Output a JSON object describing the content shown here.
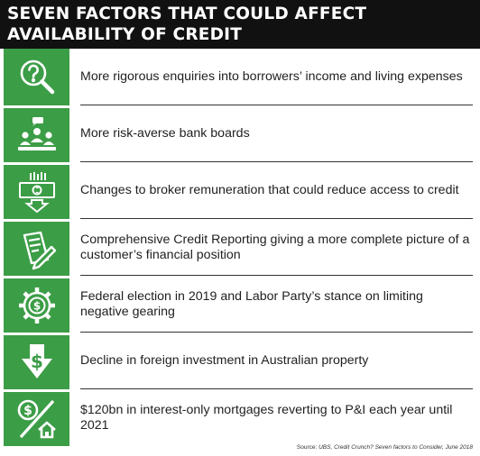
{
  "title": "SEVEN FACTORS THAT COULD AFFECT AVAILABILITY OF CREDIT",
  "accent_color": "#3c9d47",
  "factors": [
    {
      "icon": "question-magnifier-icon",
      "text": "More rigorous enquiries into borrowers’ income and living expenses"
    },
    {
      "icon": "board-meeting-icon",
      "text": "More risk-averse bank boards"
    },
    {
      "icon": "money-down-icon",
      "text": "Changes to broker remuneration that could reduce access to credit"
    },
    {
      "icon": "report-pen-icon",
      "text": "Comprehensive Credit Reporting giving a more complete picture of a customer’s financial position"
    },
    {
      "icon": "dollar-gear-icon",
      "text": "Federal election in 2019 and Labor Party’s stance on limiting negative gearing"
    },
    {
      "icon": "dollar-down-arrow-icon",
      "text": "Decline in foreign investment in Australian property"
    },
    {
      "icon": "dollar-house-icon",
      "text": "$120bn in interest-only mortgages reverting to P&I each year until 2021"
    }
  ],
  "source": {
    "label": "Source:",
    "text": "UBS, Credit Crunch? Seven factors to Consider, June 2018"
  }
}
